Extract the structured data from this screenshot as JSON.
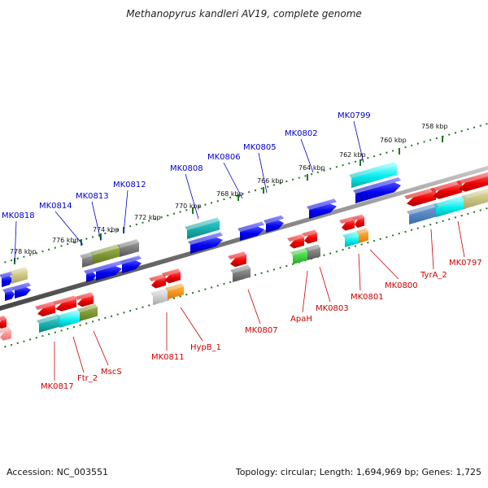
{
  "title": "Methanopyrus kandleri AV19, complete genome",
  "accession": "Accession: NC_003551",
  "stats": "Topology: circular; Length: 1,694,969 bp; Genes: 1,725",
  "colors": {
    "forward_label": "#0000cc",
    "reverse_label": "#cc0000",
    "tick": "#227722",
    "backbone": "#888888"
  },
  "ticks": [
    {
      "label": "778 kbp"
    },
    {
      "label": "776 kbp"
    },
    {
      "label": "774 kbp"
    },
    {
      "label": "772 kbp"
    },
    {
      "label": "770 kbp"
    },
    {
      "label": "768 kbp"
    },
    {
      "label": "766 kbp"
    },
    {
      "label": "764 kbp"
    },
    {
      "label": "762 kbp"
    },
    {
      "label": "760 kbp"
    },
    {
      "label": "758 kbp"
    }
  ],
  "forward_labels": [
    {
      "text": "MK0818"
    },
    {
      "text": "MK0814"
    },
    {
      "text": "MK0813"
    },
    {
      "text": "MK0812"
    },
    {
      "text": "MK0808"
    },
    {
      "text": "MK0806"
    },
    {
      "text": "MK0805"
    },
    {
      "text": "MK0802"
    },
    {
      "text": "MK0799"
    }
  ],
  "reverse_labels": [
    {
      "text": "MK0817"
    },
    {
      "text": "Ftr_2"
    },
    {
      "text": "MscS"
    },
    {
      "text": "MK0811"
    },
    {
      "text": "HypB_1"
    },
    {
      "text": "MK0807"
    },
    {
      "text": "ApaH"
    },
    {
      "text": "MK0803"
    },
    {
      "text": "MK0801"
    },
    {
      "text": "MK0800"
    },
    {
      "text": "TyrA_2"
    },
    {
      "text": "MK0797"
    }
  ]
}
